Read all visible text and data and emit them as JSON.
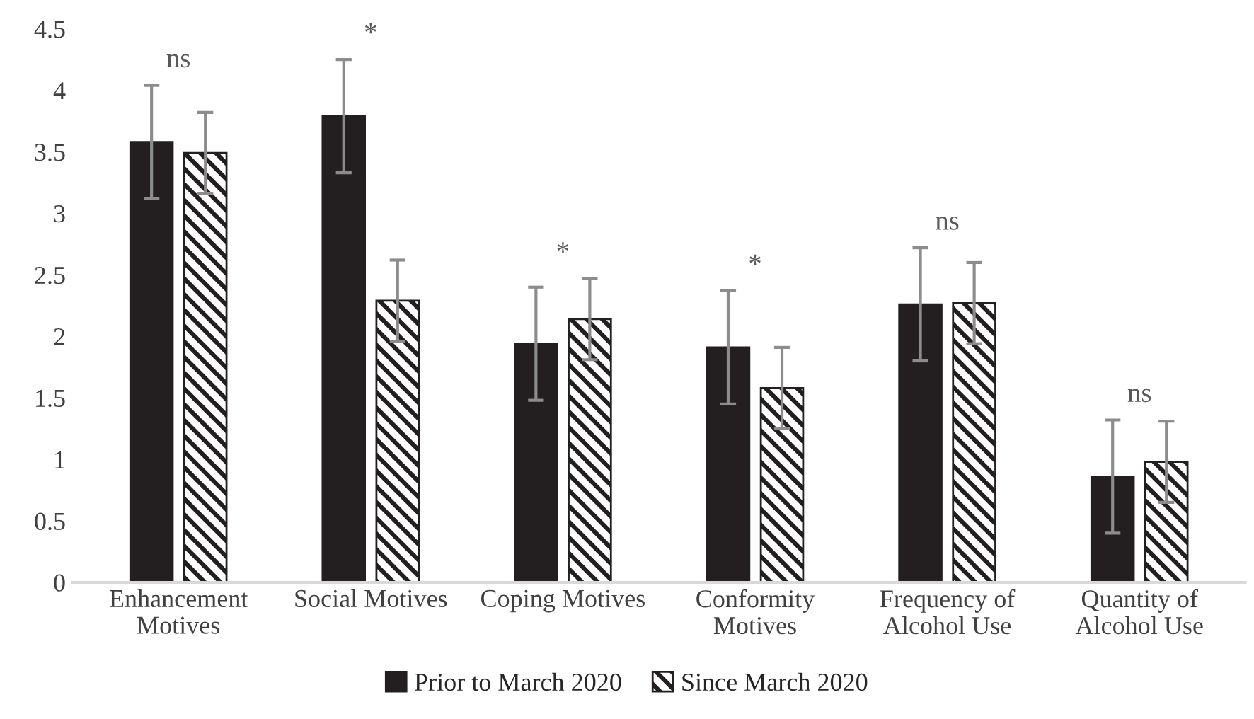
{
  "chart_data": {
    "type": "bar",
    "categories": [
      "Enhancement\nMotives",
      "Social Motives",
      "Coping Motives",
      "Conformity\nMotives",
      "Frequency of\nAlcohol Use",
      "Quantity of\nAlcohol Use"
    ],
    "series": [
      {
        "name": "Prior to March 2020",
        "color": "#231f20",
        "values": [
          3.58,
          3.79,
          1.94,
          1.91,
          2.26,
          0.86
        ],
        "errors": [
          0.46,
          0.46,
          0.46,
          0.46,
          0.46,
          0.46
        ]
      },
      {
        "name": "Since March 2020",
        "color": "#231f20",
        "values": [
          3.49,
          2.29,
          2.14,
          1.58,
          2.27,
          0.98
        ],
        "errors": [
          0.33,
          0.33,
          0.33,
          0.33,
          0.33,
          0.33
        ]
      }
    ],
    "ylim": [
      0,
      4.5
    ],
    "yticks": [
      0,
      0.5,
      1,
      1.5,
      2,
      2.5,
      3,
      3.5,
      4,
      4.5
    ],
    "annotations": [
      "ns",
      "*",
      "*",
      "*",
      "ns",
      "ns"
    ],
    "grid": false,
    "legend": "bottom"
  }
}
